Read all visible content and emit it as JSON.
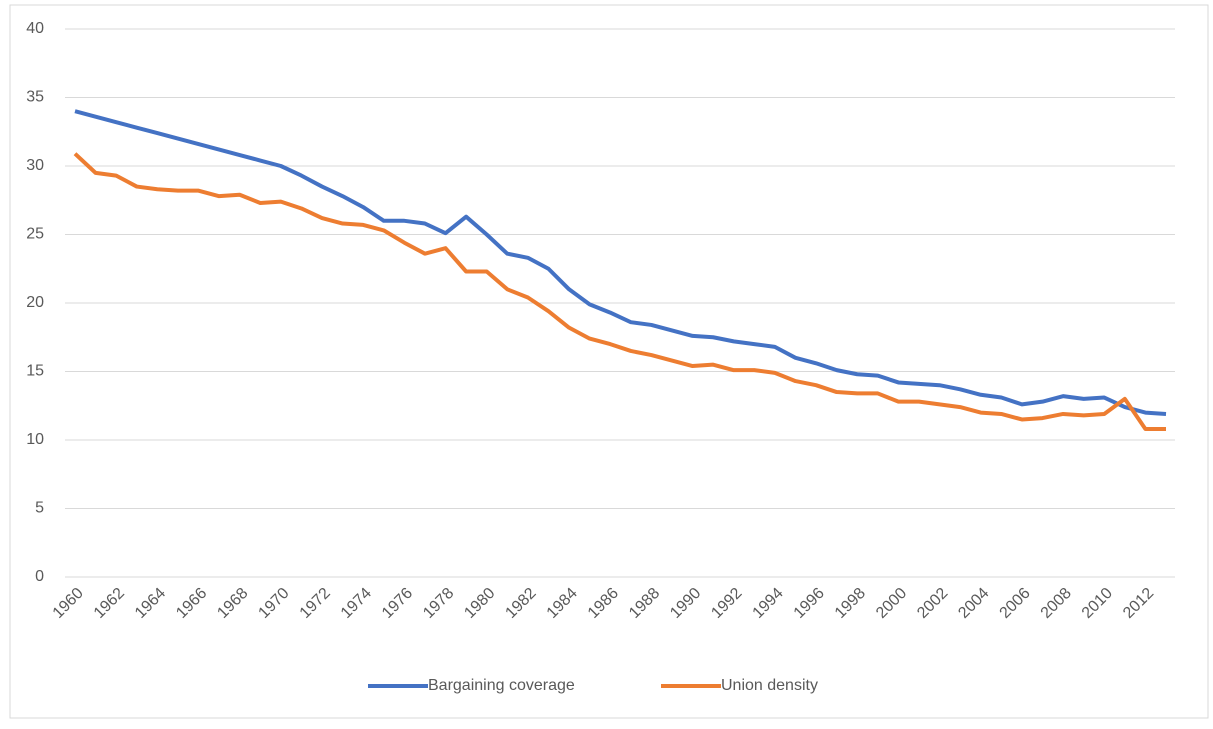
{
  "chart_data": {
    "type": "line",
    "x": [
      1960,
      1961,
      1962,
      1963,
      1964,
      1965,
      1966,
      1967,
      1968,
      1969,
      1970,
      1971,
      1972,
      1973,
      1974,
      1975,
      1976,
      1977,
      1978,
      1979,
      1980,
      1981,
      1982,
      1983,
      1984,
      1985,
      1986,
      1987,
      1988,
      1989,
      1990,
      1991,
      1992,
      1993,
      1994,
      1995,
      1996,
      1997,
      1998,
      1999,
      2000,
      2001,
      2002,
      2003,
      2004,
      2005,
      2006,
      2007,
      2008,
      2009,
      2010,
      2011,
      2012,
      2013
    ],
    "series": [
      {
        "name": "Bargaining coverage",
        "color": "#4472c4",
        "values": [
          34.0,
          33.6,
          33.2,
          32.8,
          32.4,
          32.0,
          31.6,
          31.2,
          30.8,
          30.4,
          30.0,
          29.3,
          28.5,
          27.8,
          27.0,
          26.0,
          26.0,
          25.8,
          25.1,
          26.3,
          25.0,
          23.6,
          23.3,
          22.5,
          21.0,
          19.9,
          19.3,
          18.6,
          18.4,
          18.0,
          17.6,
          17.5,
          17.2,
          17.0,
          16.8,
          16.0,
          15.6,
          15.1,
          14.8,
          14.7,
          14.2,
          14.1,
          14.0,
          13.7,
          13.3,
          13.1,
          12.6,
          12.8,
          13.2,
          13.0,
          13.1,
          12.4,
          12.0,
          11.9
        ]
      },
      {
        "name": "Union density",
        "color": "#ed7d31",
        "values": [
          30.9,
          29.5,
          29.3,
          28.5,
          28.3,
          28.2,
          28.2,
          27.8,
          27.9,
          27.3,
          27.4,
          26.9,
          26.2,
          25.8,
          25.7,
          25.3,
          24.4,
          23.6,
          24.0,
          22.3,
          22.3,
          21.0,
          20.4,
          19.4,
          18.2,
          17.4,
          17.0,
          16.5,
          16.2,
          15.8,
          15.4,
          15.5,
          15.1,
          15.1,
          14.9,
          14.3,
          14.0,
          13.5,
          13.4,
          13.4,
          12.8,
          12.8,
          12.6,
          12.4,
          12.0,
          11.9,
          11.5,
          11.6,
          11.9,
          11.8,
          11.9,
          13.0,
          10.8,
          10.8
        ]
      }
    ],
    "xlim": [
      1960,
      2013
    ],
    "xticks": [
      1960,
      1962,
      1964,
      1966,
      1968,
      1970,
      1972,
      1974,
      1976,
      1978,
      1980,
      1982,
      1984,
      1986,
      1988,
      1990,
      1992,
      1994,
      1996,
      1998,
      2000,
      2002,
      2004,
      2006,
      2008,
      2010,
      2012
    ],
    "ylim": [
      0,
      40
    ],
    "yticks": [
      0,
      5,
      10,
      15,
      20,
      25,
      30,
      35,
      40
    ],
    "grid": true,
    "legend": "bottom"
  }
}
